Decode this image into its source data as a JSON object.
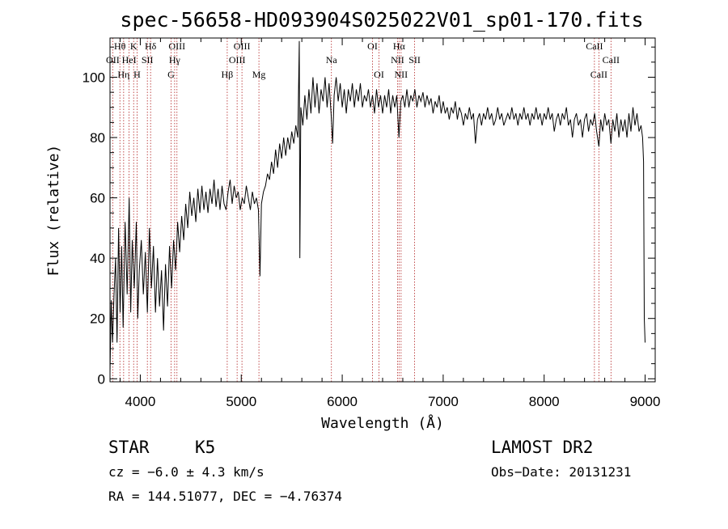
{
  "chart_data": {
    "type": "line",
    "title": "spec-56658-HD093904S025022V01_sp01-170.fits",
    "xlabel": "Wavelength (Å)",
    "ylabel": "Flux (relative)",
    "xlim": [
      3700,
      9100
    ],
    "ylim": [
      -1,
      113
    ],
    "xticks": [
      4000,
      5000,
      6000,
      7000,
      8000,
      9000
    ],
    "yticks": [
      0,
      20,
      40,
      60,
      80,
      100
    ],
    "grid": false,
    "series": [
      {
        "points": [
          [
            3700,
            2
          ],
          [
            3712,
            26
          ],
          [
            3725,
            12
          ],
          [
            3740,
            28
          ],
          [
            3755,
            40
          ],
          [
            3770,
            12
          ],
          [
            3785,
            50
          ],
          [
            3800,
            22
          ],
          [
            3815,
            44
          ],
          [
            3830,
            17
          ],
          [
            3850,
            52
          ],
          [
            3870,
            28
          ],
          [
            3890,
            60
          ],
          [
            3905,
            22
          ],
          [
            3920,
            46
          ],
          [
            3940,
            30
          ],
          [
            3960,
            52
          ],
          [
            3975,
            20
          ],
          [
            3990,
            36
          ],
          [
            4010,
            46
          ],
          [
            4030,
            28
          ],
          [
            4050,
            42
          ],
          [
            4070,
            22
          ],
          [
            4090,
            50
          ],
          [
            4110,
            30
          ],
          [
            4130,
            44
          ],
          [
            4150,
            22
          ],
          [
            4170,
            40
          ],
          [
            4190,
            24
          ],
          [
            4210,
            36
          ],
          [
            4230,
            16
          ],
          [
            4250,
            38
          ],
          [
            4270,
            24
          ],
          [
            4290,
            44
          ],
          [
            4310,
            30
          ],
          [
            4330,
            46
          ],
          [
            4350,
            36
          ],
          [
            4370,
            52
          ],
          [
            4390,
            42
          ],
          [
            4410,
            54
          ],
          [
            4430,
            46
          ],
          [
            4450,
            58
          ],
          [
            4470,
            50
          ],
          [
            4490,
            62
          ],
          [
            4510,
            54
          ],
          [
            4530,
            60
          ],
          [
            4550,
            52
          ],
          [
            4570,
            63
          ],
          [
            4590,
            55
          ],
          [
            4610,
            64
          ],
          [
            4630,
            56
          ],
          [
            4650,
            62
          ],
          [
            4670,
            55
          ],
          [
            4690,
            63
          ],
          [
            4710,
            58
          ],
          [
            4730,
            66
          ],
          [
            4750,
            57
          ],
          [
            4770,
            63
          ],
          [
            4790,
            56
          ],
          [
            4810,
            64
          ],
          [
            4830,
            58
          ],
          [
            4850,
            56
          ],
          [
            4870,
            62
          ],
          [
            4890,
            66
          ],
          [
            4910,
            58
          ],
          [
            4930,
            64
          ],
          [
            4950,
            60
          ],
          [
            4970,
            62
          ],
          [
            4990,
            56
          ],
          [
            5010,
            60
          ],
          [
            5030,
            58
          ],
          [
            5050,
            64
          ],
          [
            5070,
            60
          ],
          [
            5090,
            56
          ],
          [
            5110,
            62
          ],
          [
            5130,
            58
          ],
          [
            5150,
            60
          ],
          [
            5170,
            56
          ],
          [
            5185,
            34
          ],
          [
            5200,
            58
          ],
          [
            5220,
            62
          ],
          [
            5240,
            64
          ],
          [
            5260,
            68
          ],
          [
            5280,
            66
          ],
          [
            5300,
            72
          ],
          [
            5320,
            68
          ],
          [
            5340,
            76
          ],
          [
            5360,
            70
          ],
          [
            5380,
            78
          ],
          [
            5400,
            73
          ],
          [
            5420,
            80
          ],
          [
            5440,
            74
          ],
          [
            5460,
            80
          ],
          [
            5480,
            76
          ],
          [
            5500,
            82
          ],
          [
            5520,
            78
          ],
          [
            5540,
            84
          ],
          [
            5560,
            80
          ],
          [
            5575,
            112
          ],
          [
            5580,
            40
          ],
          [
            5590,
            90
          ],
          [
            5610,
            84
          ],
          [
            5630,
            94
          ],
          [
            5650,
            86
          ],
          [
            5670,
            96
          ],
          [
            5690,
            88
          ],
          [
            5710,
            100
          ],
          [
            5730,
            90
          ],
          [
            5750,
            98
          ],
          [
            5770,
            88
          ],
          [
            5790,
            96
          ],
          [
            5810,
            92
          ],
          [
            5830,
            100
          ],
          [
            5850,
            90
          ],
          [
            5870,
            98
          ],
          [
            5890,
            88
          ],
          [
            5905,
            78
          ],
          [
            5920,
            94
          ],
          [
            5940,
            100
          ],
          [
            5960,
            92
          ],
          [
            5980,
            98
          ],
          [
            6000,
            90
          ],
          [
            6020,
            96
          ],
          [
            6040,
            88
          ],
          [
            6060,
            96
          ],
          [
            6080,
            92
          ],
          [
            6100,
            98
          ],
          [
            6120,
            90
          ],
          [
            6140,
            96
          ],
          [
            6160,
            92
          ],
          [
            6180,
            98
          ],
          [
            6200,
            90
          ],
          [
            6220,
            94
          ],
          [
            6240,
            92
          ],
          [
            6260,
            96
          ],
          [
            6280,
            90
          ],
          [
            6300,
            94
          ],
          [
            6320,
            88
          ],
          [
            6340,
            96
          ],
          [
            6360,
            90
          ],
          [
            6380,
            94
          ],
          [
            6400,
            88
          ],
          [
            6420,
            94
          ],
          [
            6440,
            90
          ],
          [
            6460,
            96
          ],
          [
            6480,
            88
          ],
          [
            6500,
            94
          ],
          [
            6520,
            90
          ],
          [
            6540,
            94
          ],
          [
            6562,
            80
          ],
          [
            6580,
            92
          ],
          [
            6600,
            94
          ],
          [
            6620,
            90
          ],
          [
            6640,
            96
          ],
          [
            6660,
            90
          ],
          [
            6680,
            94
          ],
          [
            6700,
            92
          ],
          [
            6720,
            96
          ],
          [
            6740,
            90
          ],
          [
            6760,
            94
          ],
          [
            6780,
            92
          ],
          [
            6800,
            95
          ],
          [
            6820,
            90
          ],
          [
            6840,
            94
          ],
          [
            6860,
            91
          ],
          [
            6880,
            93
          ],
          [
            6900,
            88
          ],
          [
            6920,
            92
          ],
          [
            6940,
            90
          ],
          [
            6960,
            94
          ],
          [
            6980,
            88
          ],
          [
            7000,
            92
          ],
          [
            7020,
            88
          ],
          [
            7040,
            90
          ],
          [
            7060,
            86
          ],
          [
            7080,
            90
          ],
          [
            7100,
            88
          ],
          [
            7120,
            92
          ],
          [
            7140,
            86
          ],
          [
            7160,
            90
          ],
          [
            7180,
            88
          ],
          [
            7200,
            84
          ],
          [
            7220,
            88
          ],
          [
            7240,
            86
          ],
          [
            7260,
            90
          ],
          [
            7280,
            86
          ],
          [
            7300,
            88
          ],
          [
            7320,
            78
          ],
          [
            7340,
            86
          ],
          [
            7360,
            88
          ],
          [
            7380,
            84
          ],
          [
            7400,
            88
          ],
          [
            7420,
            86
          ],
          [
            7440,
            90
          ],
          [
            7460,
            86
          ],
          [
            7480,
            88
          ],
          [
            7500,
            84
          ],
          [
            7520,
            86
          ],
          [
            7540,
            90
          ],
          [
            7560,
            86
          ],
          [
            7580,
            88
          ],
          [
            7600,
            84
          ],
          [
            7620,
            86
          ],
          [
            7640,
            88
          ],
          [
            7660,
            86
          ],
          [
            7680,
            90
          ],
          [
            7700,
            86
          ],
          [
            7720,
            88
          ],
          [
            7740,
            84
          ],
          [
            7760,
            88
          ],
          [
            7780,
            86
          ],
          [
            7800,
            90
          ],
          [
            7820,
            86
          ],
          [
            7840,
            88
          ],
          [
            7860,
            84
          ],
          [
            7880,
            88
          ],
          [
            7900,
            86
          ],
          [
            7920,
            90
          ],
          [
            7940,
            86
          ],
          [
            7960,
            88
          ],
          [
            7980,
            84
          ],
          [
            8000,
            88
          ],
          [
            8020,
            86
          ],
          [
            8040,
            90
          ],
          [
            8060,
            86
          ],
          [
            8080,
            88
          ],
          [
            8100,
            82
          ],
          [
            8120,
            86
          ],
          [
            8140,
            88
          ],
          [
            8160,
            84
          ],
          [
            8180,
            88
          ],
          [
            8200,
            86
          ],
          [
            8220,
            90
          ],
          [
            8240,
            84
          ],
          [
            8260,
            86
          ],
          [
            8280,
            80
          ],
          [
            8300,
            86
          ],
          [
            8320,
            88
          ],
          [
            8340,
            84
          ],
          [
            8360,
            86
          ],
          [
            8380,
            80
          ],
          [
            8400,
            86
          ],
          [
            8420,
            88
          ],
          [
            8440,
            82
          ],
          [
            8460,
            86
          ],
          [
            8480,
            84
          ],
          [
            8500,
            88
          ],
          [
            8520,
            82
          ],
          [
            8542,
            77
          ],
          [
            8560,
            86
          ],
          [
            8580,
            82
          ],
          [
            8600,
            88
          ],
          [
            8620,
            84
          ],
          [
            8640,
            86
          ],
          [
            8662,
            78
          ],
          [
            8680,
            86
          ],
          [
            8700,
            82
          ],
          [
            8720,
            88
          ],
          [
            8740,
            80
          ],
          [
            8760,
            86
          ],
          [
            8780,
            82
          ],
          [
            8800,
            86
          ],
          [
            8820,
            80
          ],
          [
            8840,
            88
          ],
          [
            8860,
            82
          ],
          [
            8880,
            90
          ],
          [
            8900,
            84
          ],
          [
            8920,
            88
          ],
          [
            8940,
            82
          ],
          [
            8960,
            84
          ],
          [
            8975,
            80
          ],
          [
            8985,
            72
          ],
          [
            8992,
            20
          ],
          [
            9000,
            12
          ]
        ]
      }
    ],
    "spectral_lines": [
      {
        "label": "Hθ",
        "x": 3798,
        "row": 0
      },
      {
        "label": "K",
        "x": 3934,
        "row": 0
      },
      {
        "label": "Hδ",
        "x": 4102,
        "row": 0
      },
      {
        "label": "OIII",
        "x": 4363,
        "row": 0
      },
      {
        "label": "OIII",
        "x": 5007,
        "row": 0
      },
      {
        "label": "OI",
        "x": 6300,
        "row": 0
      },
      {
        "label": "Hα",
        "x": 6563,
        "row": 0
      },
      {
        "label": "CaII",
        "x": 8498,
        "row": 0
      },
      {
        "label": "OII",
        "x": 3727,
        "row": 1
      },
      {
        "label": "HeI",
        "x": 3889,
        "row": 1
      },
      {
        "label": "SII",
        "x": 4070,
        "row": 1
      },
      {
        "label": "Hγ",
        "x": 4340,
        "row": 1
      },
      {
        "label": "OIII",
        "x": 4959,
        "row": 1
      },
      {
        "label": "Na",
        "x": 5893,
        "row": 1
      },
      {
        "label": "NII",
        "x": 6548,
        "row": 1
      },
      {
        "label": "SII",
        "x": 6717,
        "row": 1
      },
      {
        "label": "CaII",
        "x": 8662,
        "row": 1
      },
      {
        "label": "Hη",
        "x": 3835,
        "row": 2
      },
      {
        "label": "H",
        "x": 3968,
        "row": 2
      },
      {
        "label": "G",
        "x": 4305,
        "row": 2
      },
      {
        "label": "Hβ",
        "x": 4861,
        "row": 2
      },
      {
        "label": "Mg",
        "x": 5175,
        "row": 2
      },
      {
        "label": "OI",
        "x": 6364,
        "row": 2
      },
      {
        "label": "NII",
        "x": 6583,
        "row": 2
      },
      {
        "label": "CaII",
        "x": 8542,
        "row": 2
      }
    ]
  },
  "info": {
    "object_class": "STAR",
    "subclass": "K5",
    "survey": "LAMOST DR2",
    "cz": "cz = −6.0 ± 4.3 km/s",
    "obs_date": "Obs−Date: 20131231",
    "coords": "RA = 144.51077, DEC =  −4.76374"
  }
}
